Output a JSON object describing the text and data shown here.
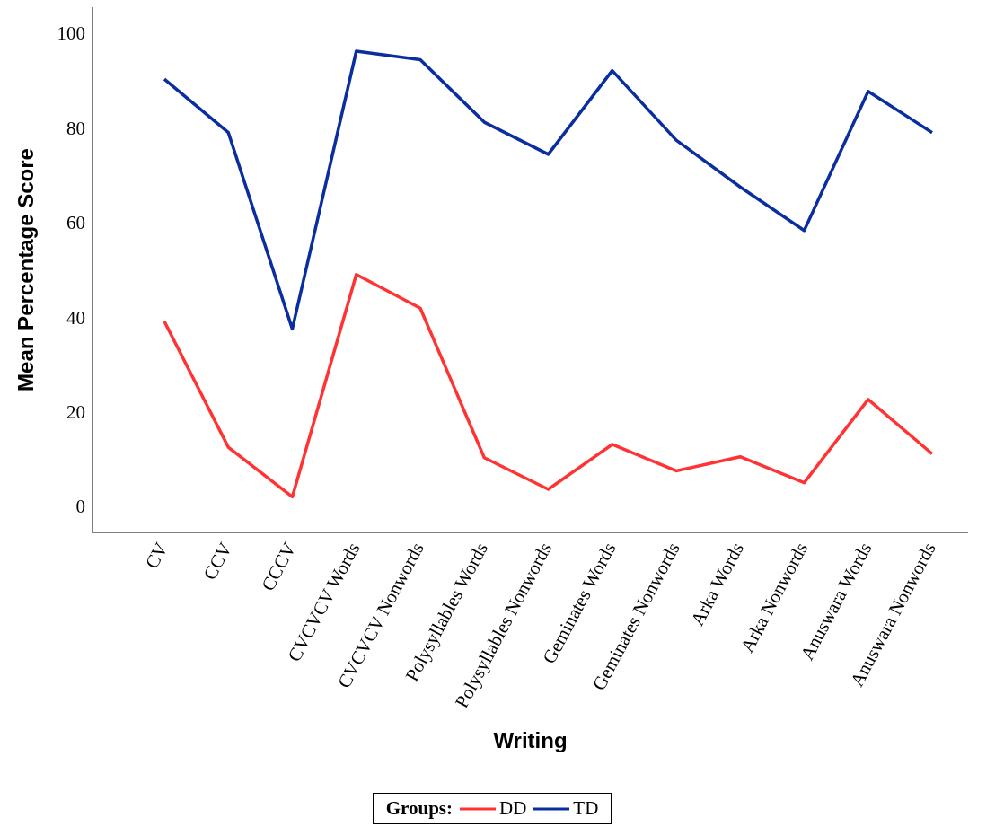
{
  "chart_data": {
    "type": "line",
    "xlabel": "Writing",
    "ylabel": "Mean Percentage Score",
    "legend_title": "Groups:",
    "legend": "bottom",
    "grid": false,
    "marker": "none",
    "line_style": "solid",
    "categories": [
      "CV",
      "CCV",
      "CCCV",
      "CVCVCV Words",
      "CVCVCV Nonwords",
      "Polysyllables Words",
      "Polysyllables Nonwords",
      "Geminates Words",
      "Geminates Nonwords",
      "Arka Words",
      "Arka Nonwords",
      "Anuswara Words",
      "Anuswara Nonwords"
    ],
    "ylim": [
      -5.5,
      105.5
    ],
    "yticks": [
      0,
      20,
      40,
      60,
      80,
      100
    ],
    "series": [
      {
        "name": "DD",
        "color": "#ff3333",
        "values": [
          39.1,
          12.5,
          2,
          49,
          41.9,
          10.3,
          3.6,
          13.1,
          7.5,
          10.5,
          5,
          22.6,
          11.1
        ]
      },
      {
        "name": "TD",
        "color": "#0a2ea0",
        "values": [
          90.3,
          79,
          37.5,
          96.2,
          94.4,
          81.2,
          74.4,
          92.1,
          77.4,
          67.5,
          58.3,
          87.7,
          79
        ]
      }
    ]
  }
}
